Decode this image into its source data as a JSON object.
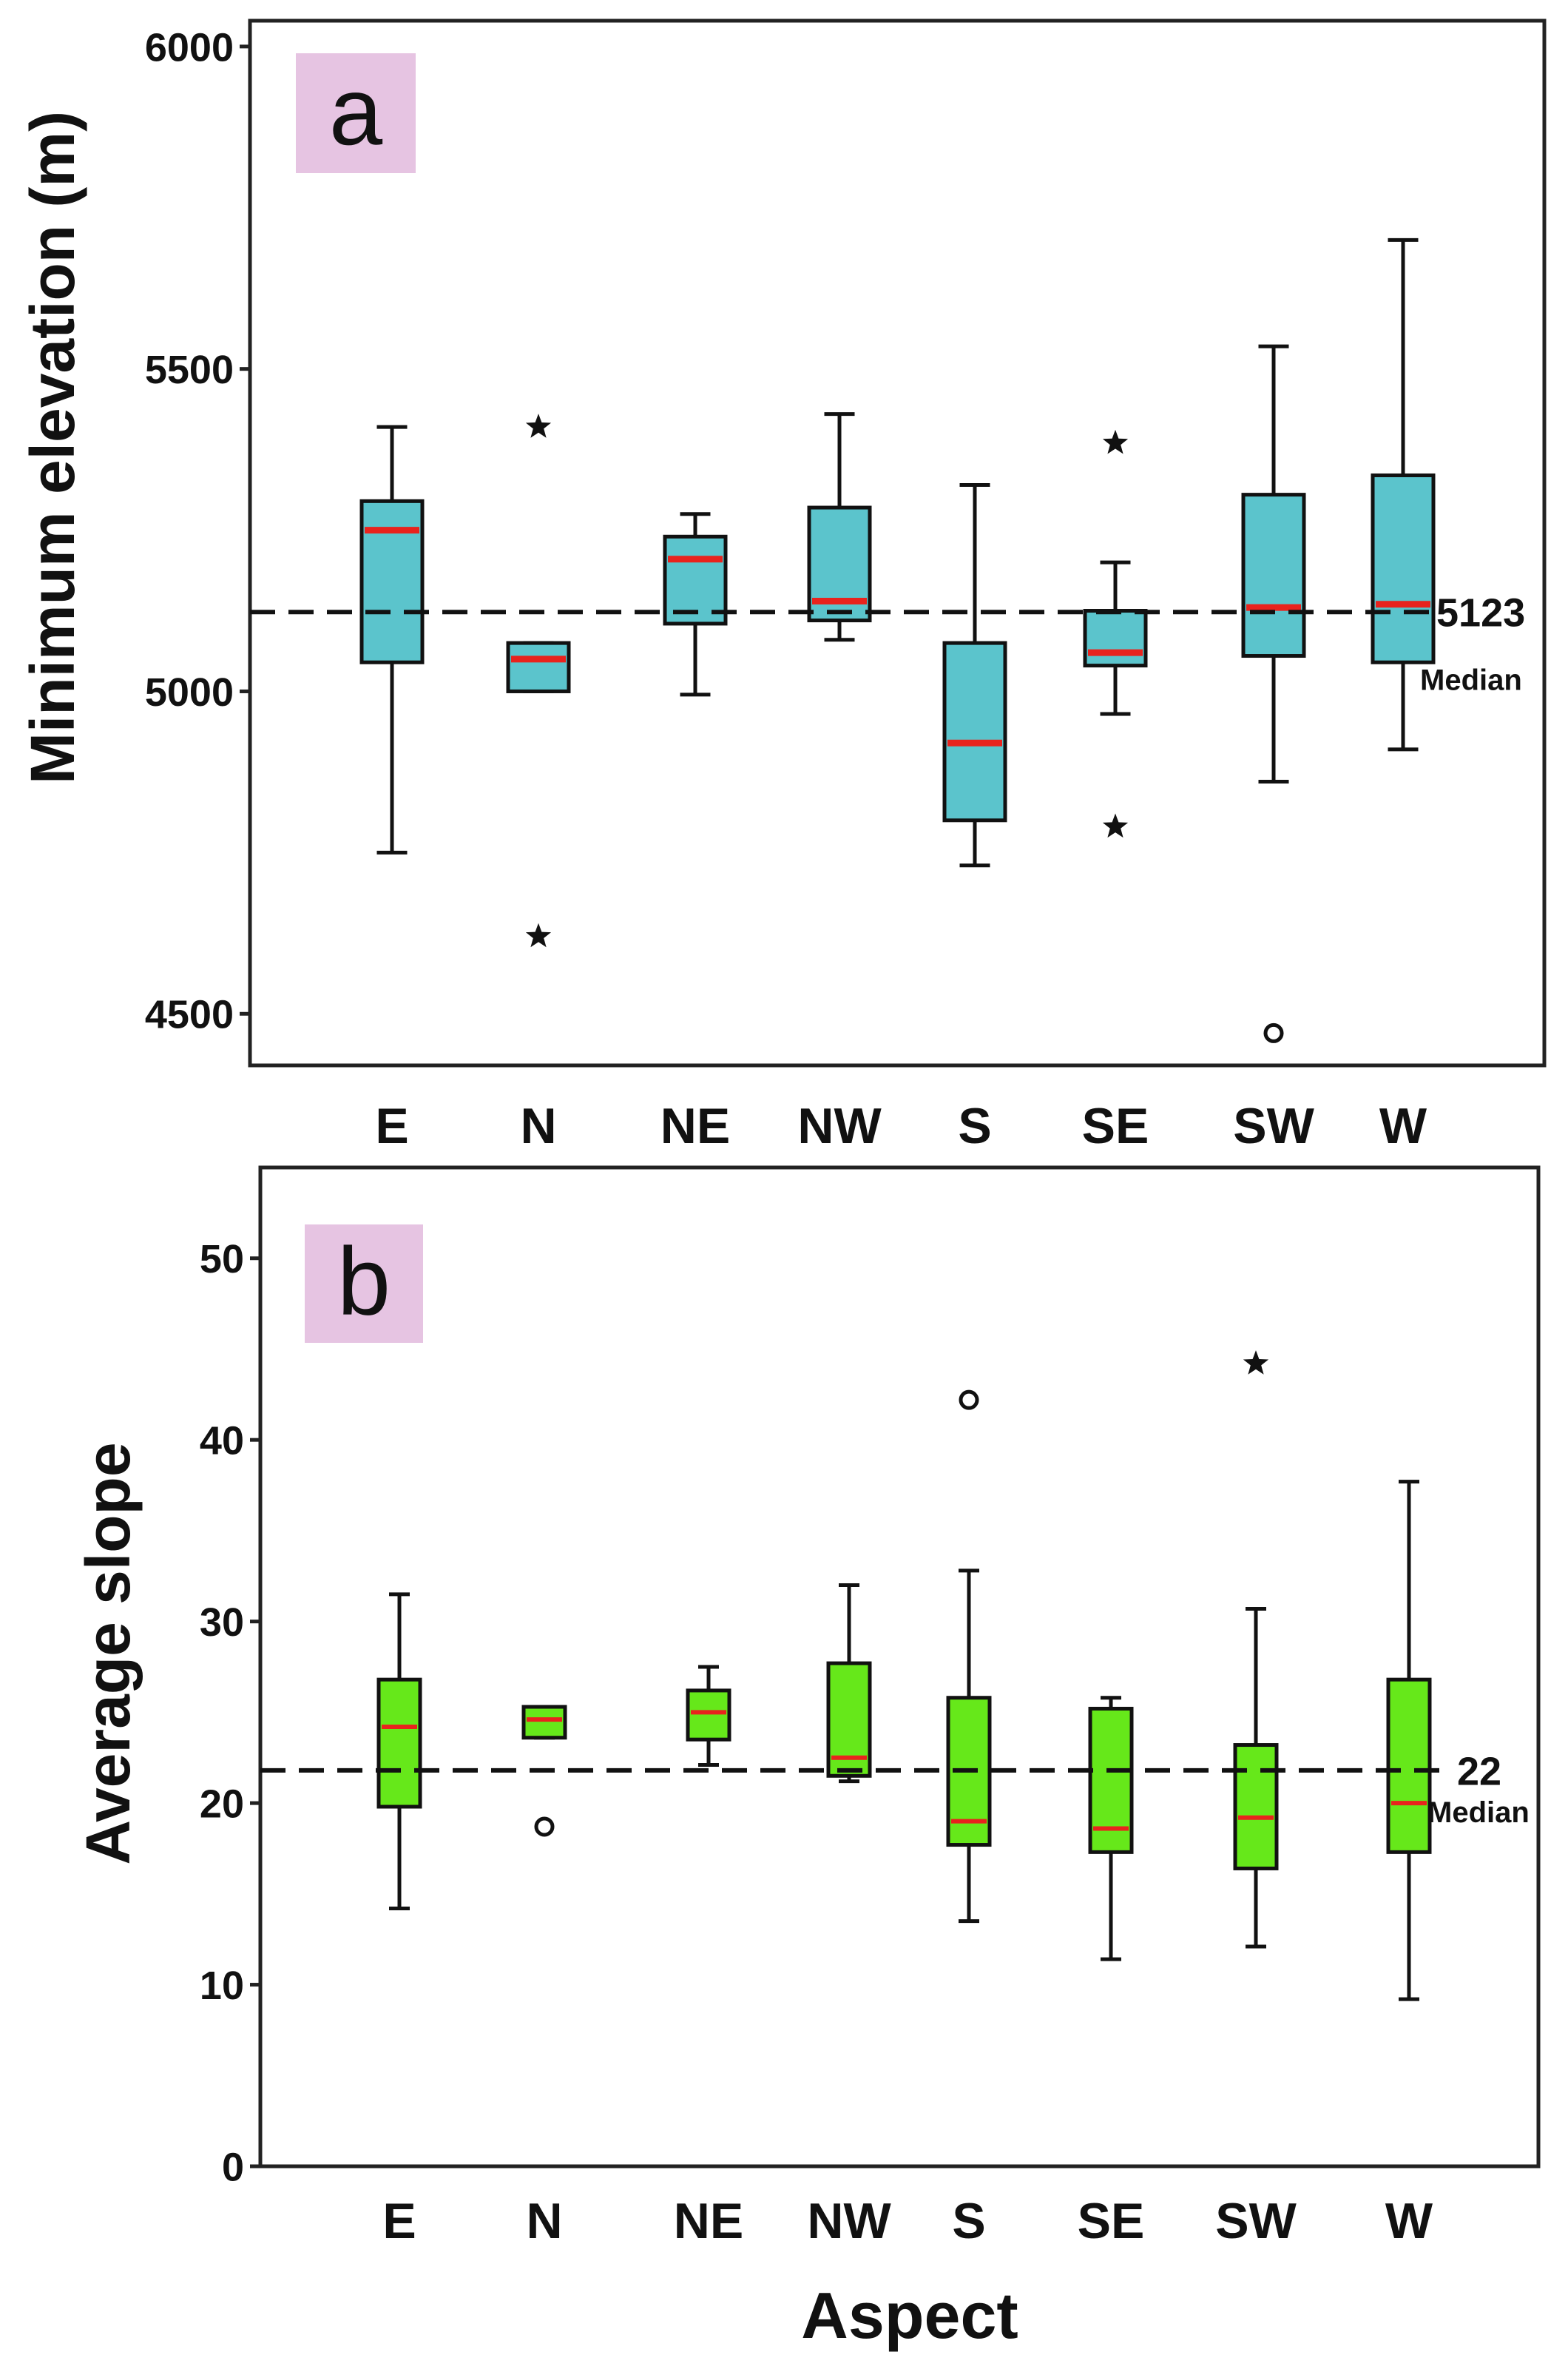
{
  "chart_data": [
    {
      "panel_label": "a",
      "type": "box",
      "ylabel": "Minimum elevation (m)",
      "xlabel": "",
      "ylim": [
        4420,
        6040
      ],
      "yticks": [
        4500,
        5000,
        5500,
        6000
      ],
      "categories": [
        "E",
        "N",
        "NE",
        "NW",
        "S",
        "SE",
        "SW",
        "W"
      ],
      "boxes": [
        {
          "category": "E",
          "whisker_low": 4750,
          "q1": 5045,
          "median": 5250,
          "q3": 5295,
          "whisker_high": 5410,
          "outliers": []
        },
        {
          "category": "N",
          "whisker_low": 5000,
          "q1": 5000,
          "median": 5050,
          "q3": 5075,
          "whisker_high": 5075,
          "outliers": [
            {
              "value": 5410,
              "marker": "star"
            },
            {
              "value": 4620,
              "marker": "star"
            }
          ]
        },
        {
          "category": "NE",
          "whisker_low": 4995,
          "q1": 5105,
          "median": 5205,
          "q3": 5240,
          "whisker_high": 5275,
          "outliers": []
        },
        {
          "category": "NW",
          "whisker_low": 5080,
          "q1": 5110,
          "median": 5140,
          "q3": 5285,
          "whisker_high": 5430,
          "outliers": []
        },
        {
          "category": "S",
          "whisker_low": 4730,
          "q1": 4800,
          "median": 4920,
          "q3": 5075,
          "whisker_high": 5320,
          "outliers": []
        },
        {
          "category": "SE",
          "whisker_low": 4965,
          "q1": 5040,
          "median": 5060,
          "q3": 5125,
          "whisker_high": 5200,
          "outliers": [
            {
              "value": 5385,
              "marker": "star"
            },
            {
              "value": 4790,
              "marker": "star"
            }
          ]
        },
        {
          "category": "SW",
          "whisker_low": 4860,
          "q1": 5055,
          "median": 5130,
          "q3": 5305,
          "whisker_high": 5535,
          "outliers": [
            {
              "value": 4470,
              "marker": "circle"
            }
          ]
        },
        {
          "category": "W",
          "whisker_low": 4910,
          "q1": 5045,
          "median": 5135,
          "q3": 5335,
          "whisker_high": 5700,
          "outliers": []
        }
      ],
      "reference_line": {
        "value": 5123,
        "label": "5123",
        "caption": "Median"
      },
      "box_color": "#5bc4cc",
      "median_color": "#e8231d",
      "label_bg_color": "#e6c4e2"
    },
    {
      "panel_label": "b",
      "type": "box",
      "ylabel": "Average slope",
      "xlabel": "Aspect",
      "ylim": [
        0,
        55
      ],
      "yticks": [
        0,
        10,
        20,
        30,
        40,
        50
      ],
      "categories": [
        "E",
        "N",
        "NE",
        "NW",
        "S",
        "SE",
        "SW",
        "W"
      ],
      "boxes": [
        {
          "category": "E",
          "whisker_low": 14.2,
          "q1": 19.8,
          "median": 24.2,
          "q3": 26.8,
          "whisker_high": 31.5,
          "outliers": []
        },
        {
          "category": "N",
          "whisker_low": 23.6,
          "q1": 23.6,
          "median": 24.6,
          "q3": 25.3,
          "whisker_high": 25.3,
          "outliers": [
            {
              "value": 18.7,
              "marker": "circle"
            }
          ]
        },
        {
          "category": "NE",
          "whisker_low": 22.1,
          "q1": 23.5,
          "median": 25.0,
          "q3": 26.2,
          "whisker_high": 27.5,
          "outliers": []
        },
        {
          "category": "NW",
          "whisker_low": 21.2,
          "q1": 21.5,
          "median": 22.5,
          "q3": 27.7,
          "whisker_high": 32.0,
          "outliers": []
        },
        {
          "category": "S",
          "whisker_low": 13.5,
          "q1": 17.7,
          "median": 19.0,
          "q3": 25.8,
          "whisker_high": 32.8,
          "outliers": [
            {
              "value": 42.2,
              "marker": "circle"
            }
          ]
        },
        {
          "category": "SE",
          "whisker_low": 11.4,
          "q1": 17.3,
          "median": 18.6,
          "q3": 25.2,
          "whisker_high": 25.8,
          "outliers": []
        },
        {
          "category": "SW",
          "whisker_low": 12.1,
          "q1": 16.4,
          "median": 19.2,
          "q3": 23.2,
          "whisker_high": 30.7,
          "outliers": [
            {
              "value": 44.2,
              "marker": "star"
            }
          ]
        },
        {
          "category": "W",
          "whisker_low": 9.2,
          "q1": 17.3,
          "median": 20.0,
          "q3": 26.8,
          "whisker_high": 37.7,
          "outliers": []
        }
      ],
      "reference_line": {
        "value": 21.8,
        "label": "22",
        "caption": "Median"
      },
      "box_color": "#66e81a",
      "median_color": "#e8231d",
      "label_bg_color": "#e6c4e2"
    }
  ]
}
